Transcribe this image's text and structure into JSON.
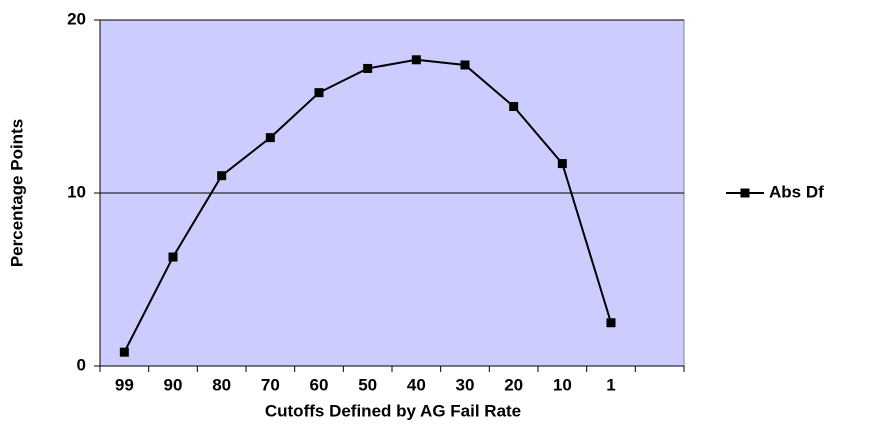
{
  "chart_data": {
    "type": "line",
    "xlabel": "Cutoffs Defined by AG Fail Rate",
    "ylabel": "Percentage Points",
    "categories": [
      "99",
      "90",
      "80",
      "70",
      "60",
      "50",
      "40",
      "30",
      "20",
      "10",
      "1",
      null
    ],
    "series": [
      {
        "name": "Abs Df",
        "color": "#000000",
        "values": [
          0.8,
          6.3,
          11.0,
          13.2,
          15.8,
          17.2,
          17.7,
          17.4,
          15.0,
          11.7,
          2.5,
          null
        ]
      }
    ],
    "ylim": [
      0,
      20
    ],
    "yticks": [
      0,
      10,
      20
    ],
    "grid": true,
    "legend": "right",
    "plot_background": "#ccccff"
  }
}
